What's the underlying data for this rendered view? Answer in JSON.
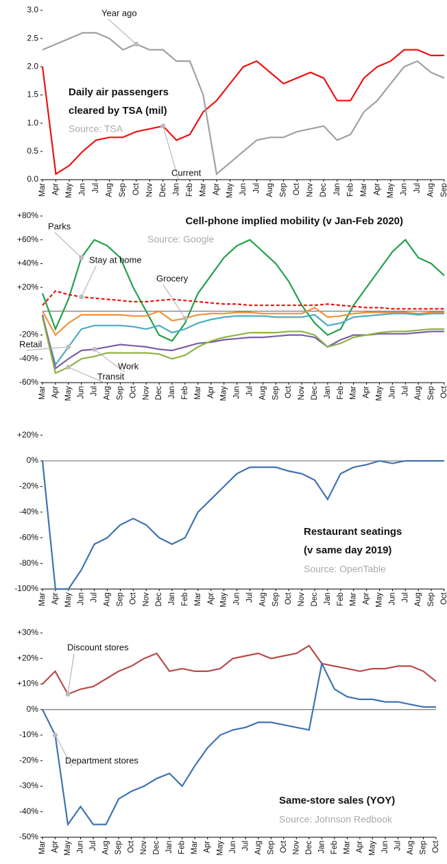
{
  "chart_data": [
    {
      "type": "line",
      "title": [
        "Daily air passengers",
        "cleared by TSA (mil)"
      ],
      "source": "Source: TSA",
      "categories": [
        "Mar",
        "Apr",
        "May",
        "Jun",
        "Jul",
        "Aug",
        "Sep",
        "Oct",
        "Nov",
        "Dec",
        "Jan",
        "Feb",
        "Mar",
        "Apr",
        "May",
        "Jun",
        "Jul",
        "Aug",
        "Sep",
        "Oct",
        "Nov",
        "Dec",
        "Jan",
        "Feb",
        "Mar",
        "Apr",
        "May",
        "Jun",
        "Jul",
        "Aug",
        "Sep"
      ],
      "series": [
        {
          "name": "Current",
          "color": "#ee1111",
          "values": [
            2.0,
            0.1,
            0.25,
            0.5,
            0.7,
            0.75,
            0.75,
            0.85,
            0.9,
            0.95,
            0.7,
            0.8,
            1.2,
            1.4,
            1.7,
            2.0,
            2.1,
            1.9,
            1.7,
            1.8,
            1.9,
            1.8,
            1.4,
            1.4,
            1.8,
            2.0,
            2.1,
            2.3,
            2.3,
            2.2,
            2.2
          ]
        },
        {
          "name": "Year ago",
          "color": "#a0a0a0",
          "values": [
            2.3,
            2.4,
            2.5,
            2.6,
            2.6,
            2.5,
            2.3,
            2.4,
            2.3,
            2.3,
            2.1,
            2.1,
            1.5,
            0.1,
            0.3,
            0.5,
            0.7,
            0.75,
            0.75,
            0.85,
            0.9,
            0.95,
            0.7,
            0.8,
            1.2,
            1.4,
            1.7,
            2.0,
            2.1,
            1.9,
            1.8
          ]
        }
      ],
      "ylim": [
        0,
        3
      ],
      "yticks": [
        {
          "value": 0,
          "label": "0.0"
        },
        0.5,
        {
          "value": 1,
          "label": "1.0"
        },
        1.5,
        {
          "value": 2,
          "label": "2.0"
        },
        2.5,
        {
          "value": 3,
          "label": "3.0"
        }
      ],
      "grid": false
    },
    {
      "type": "line",
      "title": [
        "Cell-phone implied mobility (v Jan-Feb 2020)"
      ],
      "source": "Source: Google",
      "categories": [
        "Mar",
        "Apr",
        "May",
        "Jun",
        "Jul",
        "Aug",
        "Sep",
        "Oct",
        "Nov",
        "Dec",
        "Jan",
        "Feb",
        "Mar",
        "Apr",
        "May",
        "Jun",
        "Jul",
        "Aug",
        "Sep",
        "Oct",
        "Nov",
        "Dec",
        "Jan",
        "Feb",
        "Mar",
        "Apr",
        "May",
        "Jun",
        "Jul",
        "Aug",
        "Sep",
        "Oct"
      ],
      "series": [
        {
          "name": "Parks",
          "color": "#22a04a",
          "values": [
            15,
            -15,
            10,
            45,
            60,
            55,
            45,
            20,
            0,
            -20,
            -25,
            -10,
            15,
            30,
            45,
            55,
            60,
            50,
            40,
            25,
            5,
            -10,
            -20,
            -15,
            5,
            20,
            35,
            50,
            60,
            45,
            40,
            30
          ]
        },
        {
          "name": "Stay at home",
          "color": "#ee1111",
          "dashed": true,
          "values": [
            5,
            17,
            14,
            12,
            11,
            10,
            9,
            8,
            8,
            9,
            10,
            9,
            8,
            7,
            6,
            6,
            5,
            5,
            5,
            5,
            5,
            5,
            6,
            5,
            4,
            3,
            3,
            2,
            2,
            2,
            2,
            2
          ]
        },
        {
          "name": "Grocery",
          "color": "#f0923a",
          "values": [
            0,
            -20,
            -10,
            -3,
            -3,
            -3,
            -3,
            -4,
            -4,
            0,
            -8,
            -6,
            -3,
            -2,
            -2,
            -1,
            -1,
            -2,
            -2,
            -2,
            -2,
            3,
            -5,
            -4,
            -2,
            -1,
            -1,
            -1,
            -1,
            -2,
            -1,
            -1
          ]
        },
        {
          "name": "Retail",
          "color": "#4aabc4",
          "values": [
            -5,
            -45,
            -30,
            -15,
            -12,
            -12,
            -12,
            -13,
            -15,
            -12,
            -18,
            -15,
            -10,
            -7,
            -5,
            -4,
            -4,
            -4,
            -5,
            -5,
            -5,
            -3,
            -12,
            -10,
            -5,
            -4,
            -3,
            -2,
            -2,
            -3,
            -2,
            -2
          ]
        },
        {
          "name": "Work",
          "color": "#7a5ea8",
          "values": [
            -3,
            -48,
            -40,
            -33,
            -32,
            -30,
            -28,
            -29,
            -30,
            -32,
            -33,
            -30,
            -27,
            -26,
            -24,
            -23,
            -22,
            -22,
            -21,
            -20,
            -20,
            -22,
            -30,
            -24,
            -20,
            -20,
            -19,
            -19,
            -19,
            -18,
            -17,
            -17
          ]
        },
        {
          "name": "Transit",
          "color": "#8db443",
          "values": [
            -5,
            -52,
            -47,
            -40,
            -38,
            -35,
            -35,
            -35,
            -35,
            -36,
            -40,
            -37,
            -30,
            -25,
            -22,
            -20,
            -18,
            -18,
            -18,
            -17,
            -17,
            -20,
            -30,
            -27,
            -22,
            -20,
            -18,
            -17,
            -17,
            -16,
            -15,
            -15
          ]
        }
      ],
      "ylim": [
        -60,
        80
      ],
      "yticks": [
        {
          "value": -60,
          "label": "-60%"
        },
        {
          "value": -40,
          "label": "-40%"
        },
        {
          "value": -20,
          "label": "-20%"
        },
        {
          "value": 20,
          "label": "+20%"
        },
        {
          "value": 40,
          "label": "+40%"
        },
        {
          "value": 60,
          "label": "+60%"
        },
        {
          "value": 80,
          "label": "+80%"
        }
      ],
      "grid": false
    },
    {
      "type": "line",
      "title": [
        "Restaurant seatings",
        "(v same day 2019)"
      ],
      "source": "Source: OpenTable",
      "categories": [
        "Mar",
        "Apr",
        "May",
        "Jun",
        "Jul",
        "Aug",
        "Sep",
        "Oct",
        "Nov",
        "Dec",
        "Jan",
        "Feb",
        "Mar",
        "Apr",
        "May",
        "Jun",
        "Jul",
        "Aug",
        "Sep",
        "Oct",
        "Nov",
        "Dec",
        "Jan",
        "Feb",
        "Mar",
        "Apr",
        "May",
        "Jun",
        "Jul",
        "Aug",
        "Sep",
        "Oct"
      ],
      "series": [
        {
          "name": "Restaurant seatings",
          "color": "#3f72b0",
          "values": [
            0,
            -100,
            -100,
            -85,
            -65,
            -60,
            -50,
            -45,
            -50,
            -60,
            -65,
            -60,
            -40,
            -30,
            -20,
            -10,
            -5,
            -5,
            -5,
            -8,
            -10,
            -15,
            -30,
            -10,
            -5,
            -3,
            0,
            -2,
            0,
            0,
            0,
            0
          ]
        }
      ],
      "ylim": [
        -100,
        30
      ],
      "yticks": [
        {
          "value": -100,
          "label": "-100%"
        },
        {
          "value": -80,
          "label": "-80%"
        },
        {
          "value": -60,
          "label": "-60%"
        },
        {
          "value": -40,
          "label": "-40%"
        },
        {
          "value": -20,
          "label": "-20%"
        },
        {
          "value": 0,
          "label": "0%"
        },
        {
          "value": 20,
          "label": "+20%"
        }
      ],
      "grid": false
    },
    {
      "type": "line",
      "title": [
        "Same-store sales (YOY)"
      ],
      "source": "Source: Johnson Redbook",
      "categories": [
        "Mar",
        "Apr",
        "May",
        "Jun",
        "Jul",
        "Aug",
        "Sep",
        "Oct",
        "Nov",
        "Dec",
        "Jan",
        "Feb",
        "Mar",
        "Apr",
        "May",
        "Jun",
        "Jul",
        "Aug",
        "Sep",
        "Oct",
        "Nov",
        "Dec",
        "Jan",
        "Feb",
        "Mar",
        "Apr",
        "May",
        "Jun",
        "Jul",
        "Aug",
        "Sep",
        "Oct"
      ],
      "series": [
        {
          "name": "Discount stores",
          "color": "#b94a48",
          "values": [
            10,
            15,
            6,
            8,
            9,
            12,
            15,
            17,
            20,
            22,
            15,
            16,
            15,
            15,
            16,
            20,
            21,
            22,
            20,
            21,
            22,
            25,
            18,
            17,
            16,
            15,
            16,
            16,
            17,
            17,
            15,
            11
          ]
        },
        {
          "name": "Department stores",
          "color": "#3f72b0",
          "values": [
            0,
            -10,
            -45,
            -38,
            -45,
            -45,
            -35,
            -32,
            -30,
            -27,
            -25,
            -30,
            -22,
            -15,
            -10,
            -8,
            -7,
            -5,
            -5,
            -6,
            -7,
            -8,
            18,
            8,
            5,
            4,
            4,
            3,
            3,
            2,
            1,
            1
          ]
        }
      ],
      "ylim": [
        -50,
        30
      ],
      "yticks": [
        {
          "value": -50,
          "label": "-50%"
        },
        {
          "value": -40,
          "label": "-40%"
        },
        {
          "value": -30,
          "label": "-30%"
        },
        {
          "value": -20,
          "label": "-20%"
        },
        {
          "value": -10,
          "label": "-10%"
        },
        {
          "value": 0,
          "label": "0%"
        },
        {
          "value": 10,
          "label": "+10%"
        },
        {
          "value": 20,
          "label": "+20%"
        },
        {
          "value": 30,
          "label": "+30%"
        }
      ],
      "grid": false
    }
  ]
}
